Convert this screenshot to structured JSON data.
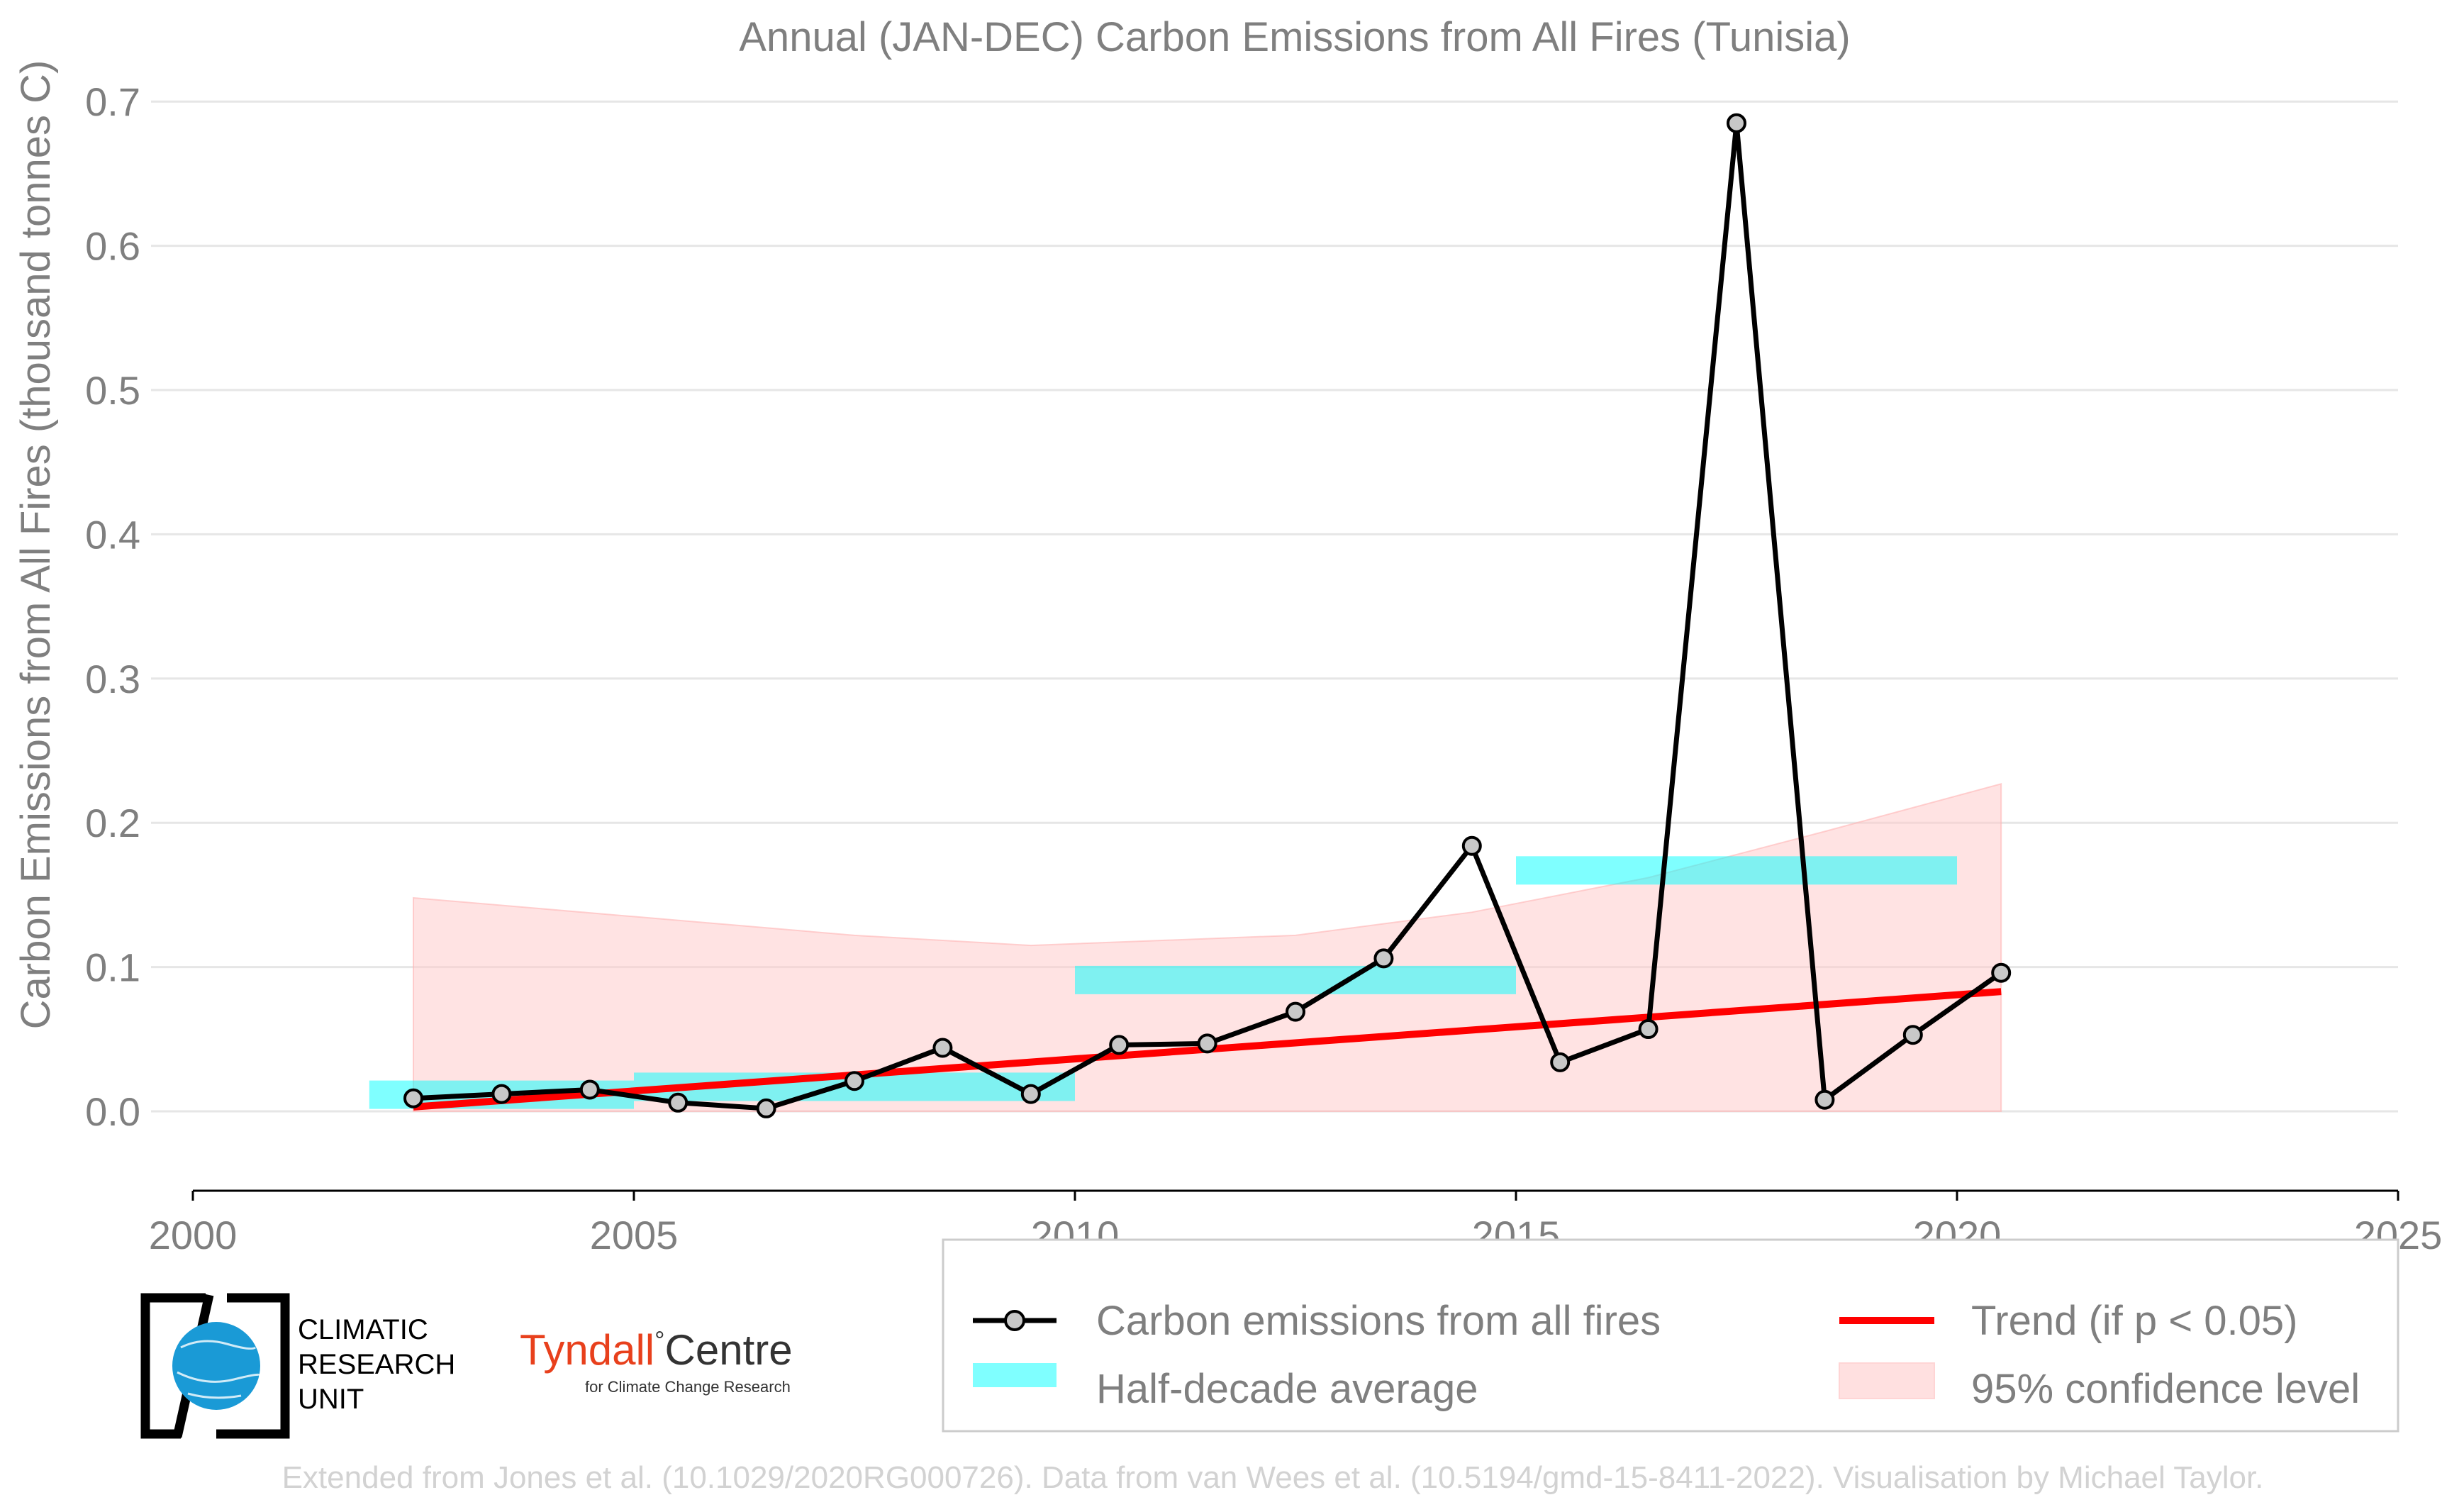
{
  "chart_data": {
    "type": "line",
    "title": "Annual (JAN-DEC) Carbon Emissions from All Fires (Tunisia)",
    "ylabel": "Carbon Emissions from All Fires (thousand tonnes C)",
    "xlabel": "",
    "xlim": [
      2000,
      2025
    ],
    "ylim": [
      -0.055,
      0.7
    ],
    "x_ticks": [
      "2000",
      "2005",
      "2010",
      "2015",
      "2020",
      "2025"
    ],
    "y_ticks": [
      "0.0",
      "0.1",
      "0.2",
      "0.3",
      "0.4",
      "0.5",
      "0.6",
      "0.7"
    ],
    "grid": "horizontal",
    "series": [
      {
        "name": "Carbon emissions from all fires",
        "color": "#000000",
        "x": [
          2002.5,
          2003.5,
          2004.5,
          2005.5,
          2006.5,
          2007.5,
          2008.5,
          2009.5,
          2010.5,
          2011.5,
          2012.5,
          2013.5,
          2014.5,
          2015.5,
          2016.5,
          2017.5,
          2018.5,
          2019.5,
          2020.5
        ],
        "y": [
          0.009,
          0.012,
          0.015,
          0.006,
          0.002,
          0.021,
          0.044,
          0.012,
          0.046,
          0.047,
          0.069,
          0.106,
          0.184,
          0.034,
          0.057,
          0.685,
          0.008,
          0.053,
          0.096
        ]
      }
    ],
    "half_decade_average": {
      "name": "Half-decade average",
      "color": "#00ffff",
      "segments": [
        {
          "x0": 2002,
          "x1": 2005,
          "y": 0.0115
        },
        {
          "x0": 2005,
          "x1": 2010,
          "y": 0.017
        },
        {
          "x0": 2010,
          "x1": 2015,
          "y": 0.091
        },
        {
          "x0": 2015,
          "x1": 2020,
          "y": 0.167
        }
      ]
    },
    "trend": {
      "name": "Trend (if p < 0.05)",
      "color": "#ff0000",
      "x": [
        2002.5,
        2020.5
      ],
      "y": [
        0.003,
        0.083
      ]
    },
    "confidence_band": {
      "name": "95% confidence level",
      "color": "#ffc8c8",
      "x": [
        2002.5,
        2005,
        2007.5,
        2009.5,
        2012.5,
        2014.5,
        2016.5,
        2018.5,
        2020.5
      ],
      "upper": [
        0.148,
        0.135,
        0.122,
        0.115,
        0.122,
        0.138,
        0.162,
        0.194,
        0.227
      ],
      "lower": [
        0.0,
        0.0,
        0.0,
        0.0,
        0.0,
        0.0,
        0.0,
        0.0,
        0.0
      ]
    },
    "legend": {
      "placement": "bottom-right",
      "entries": [
        "Carbon emissions from all fires",
        "Half-decade average",
        "Trend (if p < 0.05)",
        "95% confidence level"
      ]
    }
  },
  "logos": {
    "cru_text": [
      "CLIMATIC",
      "RESEARCH",
      "UNIT"
    ],
    "tyndall_main": "Tyndall",
    "tyndall_degree": "°",
    "tyndall_centre": "Centre",
    "tyndall_sub": "for Climate Change Research"
  },
  "footer": "Extended from Jones et al. (10.1029/2020RG000726). Data from van Wees et al. (10.5194/gmd-15-8411-2022). Visualisation by Michael Taylor."
}
